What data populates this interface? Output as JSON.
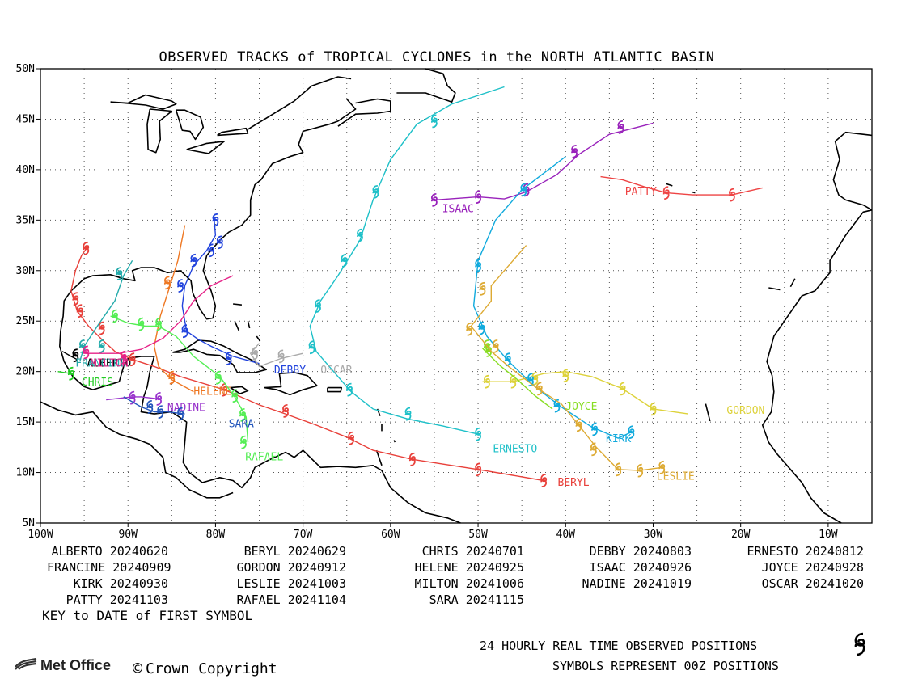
{
  "title": "OBSERVED TRACKS of TROPICAL CYCLONES in the NORTH ATLANTIC BASIN",
  "map": {
    "lon_range": [
      -100,
      -5
    ],
    "lat_range": [
      5,
      50
    ],
    "lat_ticks": [
      "5N",
      "10N",
      "15N",
      "20N",
      "25N",
      "30N",
      "35N",
      "40N",
      "45N",
      "50N"
    ],
    "lat_tick_values": [
      5,
      10,
      15,
      20,
      25,
      30,
      35,
      40,
      45,
      50
    ],
    "lon_ticks": [
      "100W",
      "90W",
      "80W",
      "70W",
      "60W",
      "50W",
      "40W",
      "30W",
      "20W",
      "10W"
    ],
    "lon_tick_values": [
      -100,
      -90,
      -80,
      -70,
      -60,
      -50,
      -40,
      -30,
      -20,
      -10
    ],
    "grid": "dotted"
  },
  "storms": [
    {
      "name": "ALBERTO",
      "color": "#000000",
      "label": [
        -94.7,
        20.5
      ],
      "track": [
        [
          -97.5,
          22.0
        ],
        [
          -96.5,
          21.5
        ],
        [
          -95.8,
          21.2
        ]
      ],
      "symbols": [
        [
          -96,
          21.6
        ]
      ]
    },
    {
      "name": "BERYL",
      "color": "#e8403a",
      "label": [
        -40.9,
        8.7
      ],
      "track": [
        [
          -42.5,
          9.2
        ],
        [
          -50.0,
          10.3
        ],
        [
          -57.5,
          11.3
        ],
        [
          -62,
          12.2
        ],
        [
          -65,
          13.5
        ],
        [
          -68.5,
          14.7
        ],
        [
          -72,
          15.8
        ],
        [
          -75,
          16.7
        ],
        [
          -79,
          18.2
        ],
        [
          -84,
          19.5
        ],
        [
          -87,
          20.5
        ],
        [
          -89.5,
          21.2
        ],
        [
          -91.5,
          22.0
        ],
        [
          -93,
          23.2
        ],
        [
          -94.5,
          24.5
        ],
        [
          -95.8,
          26.0
        ],
        [
          -96.5,
          28.0
        ],
        [
          -96.0,
          30.0
        ],
        [
          -95.3,
          31.5
        ],
        [
          -94.5,
          32.5
        ]
      ],
      "symbols": [
        [
          -42.5,
          9.2
        ],
        [
          -50.0,
          10.3
        ],
        [
          -57.5,
          11.3
        ],
        [
          -64.5,
          13.4
        ],
        [
          -72,
          16.1
        ],
        [
          -79,
          18.2
        ],
        [
          -89.5,
          21.2
        ],
        [
          -93,
          24.3
        ],
        [
          -95.5,
          26.0
        ],
        [
          -96.0,
          27.2
        ],
        [
          -94.8,
          32.2
        ]
      ]
    },
    {
      "name": "CHRIS",
      "color": "#22cc22",
      "label": [
        -95.3,
        18.6
      ],
      "track": [
        [
          -98.0,
          20.0
        ],
        [
          -96.5,
          19.8
        ]
      ],
      "symbols": [
        [
          -96.5,
          19.8
        ]
      ]
    },
    {
      "name": "DEBBY",
      "color": "#2244dd",
      "label": [
        -73.3,
        19.8
      ],
      "track": [
        [
          -75.0,
          20.8
        ],
        [
          -78.0,
          21.5
        ],
        [
          -80.5,
          22.5
        ],
        [
          -82.0,
          23.2
        ],
        [
          -83.3,
          24.0
        ],
        [
          -83.8,
          26.5
        ],
        [
          -83.5,
          28.5
        ],
        [
          -82.5,
          30.5
        ],
        [
          -81.0,
          32.0
        ],
        [
          -80.0,
          33.5
        ],
        [
          -80.2,
          35.5
        ]
      ],
      "symbols": [
        [
          -78.5,
          21.3
        ],
        [
          -83.5,
          24.0
        ],
        [
          -84.0,
          28.5
        ],
        [
          -82.5,
          31.0
        ],
        [
          -80.5,
          32.0
        ],
        [
          -79.5,
          32.8
        ],
        [
          -80.0,
          35.0
        ]
      ]
    },
    {
      "name": "ERNESTO",
      "color": "#1ec0c8",
      "label": [
        -48.3,
        12.0
      ],
      "track": [
        [
          -50.0,
          13.8
        ],
        [
          -54,
          14.6
        ],
        [
          -58,
          15.3
        ],
        [
          -62,
          16.3
        ],
        [
          -64.5,
          18.0
        ],
        [
          -66.5,
          20.0
        ],
        [
          -68.5,
          22.0
        ],
        [
          -69.2,
          24.5
        ],
        [
          -68.0,
          27.0
        ],
        [
          -66.0,
          29.5
        ],
        [
          -63.5,
          33.0
        ],
        [
          -62.0,
          37.0
        ],
        [
          -60.0,
          41.0
        ],
        [
          -57.0,
          44.5
        ],
        [
          -53.0,
          46.5
        ],
        [
          -47.0,
          48.2
        ]
      ],
      "symbols": [
        [
          -50.0,
          13.8
        ],
        [
          -58.0,
          15.8
        ],
        [
          -64.7,
          18.2
        ],
        [
          -69.0,
          22.4
        ],
        [
          -68.3,
          26.5
        ],
        [
          -65.3,
          31.0
        ],
        [
          -63.5,
          33.5
        ],
        [
          -61.7,
          37.8
        ],
        [
          -55.0,
          44.8
        ]
      ]
    },
    {
      "name": "FRANCINE",
      "color": "#22aaaa",
      "label": [
        -96.0,
        20.5
      ],
      "track": [
        [
          -95.5,
          21.0
        ],
        [
          -95.0,
          22.5
        ],
        [
          -93.5,
          24.5
        ],
        [
          -91.5,
          27.0
        ],
        [
          -90.5,
          29.5
        ],
        [
          -89.5,
          31.0
        ]
      ],
      "symbols": [
        [
          -95.2,
          22.5
        ],
        [
          -93,
          22.5
        ],
        [
          -91,
          29.7
        ]
      ]
    },
    {
      "name": "GORDON",
      "color": "#ddd23a",
      "label": [
        -21.6,
        15.8
      ],
      "track": [
        [
          -26.0,
          15.8
        ],
        [
          -30.0,
          16.3
        ],
        [
          -33.5,
          18.3
        ],
        [
          -37.0,
          19.5
        ],
        [
          -40.0,
          20.0
        ],
        [
          -42.5,
          19.8
        ],
        [
          -46.0,
          19.0
        ],
        [
          -49.5,
          19.0
        ]
      ],
      "symbols": [
        [
          -30.0,
          16.3
        ],
        [
          -33.5,
          18.3
        ],
        [
          -40.0,
          19.6
        ],
        [
          -43.5,
          19.3
        ],
        [
          -46.0,
          19.0
        ],
        [
          -49.0,
          19.0
        ]
      ]
    },
    {
      "name": "HELENE",
      "color": "#ee7722",
      "label": [
        -82.5,
        17.7
      ],
      "track": [
        [
          -82.5,
          18.0
        ],
        [
          -85,
          19.2
        ],
        [
          -86.5,
          20.5
        ],
        [
          -87.0,
          22.5
        ],
        [
          -86.3,
          25.5
        ],
        [
          -85.2,
          28.5
        ],
        [
          -84.3,
          31.0
        ],
        [
          -83.5,
          34.5
        ]
      ],
      "symbols": [
        [
          -85.0,
          19.4
        ],
        [
          -85.5,
          28.8
        ]
      ]
    },
    {
      "name": "ISAAC",
      "color": "#9922bb",
      "label": [
        -54.1,
        35.8
      ],
      "track": [
        [
          -55.0,
          37.0
        ],
        [
          -50.0,
          37.3
        ],
        [
          -47.0,
          37.1
        ],
        [
          -44.5,
          37.8
        ],
        [
          -41.0,
          39.5
        ],
        [
          -38.5,
          41.5
        ],
        [
          -35.0,
          43.5
        ],
        [
          -30.0,
          44.6
        ]
      ],
      "symbols": [
        [
          -55.0,
          37.0
        ],
        [
          -50.0,
          37.3
        ],
        [
          -44.5,
          38.0
        ],
        [
          -39.0,
          41.8
        ],
        [
          -33.7,
          44.2
        ]
      ]
    },
    {
      "name": "JOYCE",
      "color": "#88dd22",
      "label": [
        -40.0,
        16.2
      ],
      "track": [
        [
          -41.5,
          16.3
        ],
        [
          -43.5,
          17.6
        ],
        [
          -45.5,
          19.2
        ],
        [
          -47.5,
          20.6
        ],
        [
          -49.5,
          22.3
        ]
      ],
      "symbols": [
        [
          -49.0,
          22.5
        ],
        [
          -48.8,
          22.1
        ]
      ]
    },
    {
      "name": "KIRK",
      "color": "#11aadd",
      "label": [
        -35.4,
        13.0
      ],
      "track": [
        [
          -32.5,
          14.0
        ],
        [
          -34.0,
          13.4
        ],
        [
          -37.0,
          14.5
        ],
        [
          -40.5,
          16.5
        ],
        [
          -43.5,
          18.5
        ],
        [
          -46.5,
          21.0
        ],
        [
          -49.0,
          23.5
        ],
        [
          -50.5,
          26.5
        ],
        [
          -50.0,
          31.0
        ],
        [
          -48.0,
          35.0
        ],
        [
          -45.0,
          38.0
        ],
        [
          -40.0,
          41.3
        ]
      ],
      "symbols": [
        [
          -32.5,
          14.0
        ],
        [
          -36.7,
          14.3
        ],
        [
          -41.0,
          16.6
        ],
        [
          -44.0,
          19.2
        ],
        [
          -46.6,
          21.2
        ],
        [
          -49.6,
          24.3
        ],
        [
          -50.0,
          30.5
        ],
        [
          -44.8,
          38.0
        ]
      ]
    },
    {
      "name": "LESLIE",
      "color": "#ddaa33",
      "label": [
        -29.6,
        9.3
      ],
      "track": [
        [
          -29.0,
          10.5
        ],
        [
          -31.5,
          10.2
        ],
        [
          -34.0,
          10.3
        ],
        [
          -36.5,
          12.5
        ],
        [
          -38.5,
          14.7
        ],
        [
          -40.5,
          16.8
        ],
        [
          -43.5,
          18.5
        ],
        [
          -46.5,
          20.5
        ],
        [
          -48.5,
          22.0
        ],
        [
          -50.8,
          24.5
        ],
        [
          -48.5,
          27.0
        ],
        [
          -48.5,
          28.5
        ],
        [
          -46.0,
          31.0
        ],
        [
          -44.5,
          32.5
        ]
      ],
      "symbols": [
        [
          -29.0,
          10.5
        ],
        [
          -31.5,
          10.2
        ],
        [
          -34.0,
          10.3
        ],
        [
          -36.8,
          12.3
        ],
        [
          -38.5,
          14.7
        ],
        [
          -43.0,
          18.3
        ],
        [
          -48.0,
          22.5
        ],
        [
          -51.0,
          24.2
        ],
        [
          -49.5,
          28.2
        ]
      ]
    },
    {
      "name": "MILTON",
      "color": "#e62288",
      "label": [
        -94.3,
        20.5
      ],
      "track": [
        [
          -95.0,
          21.8
        ],
        [
          -91.0,
          21.8
        ],
        [
          -88.5,
          22.2
        ],
        [
          -86.0,
          23.3
        ],
        [
          -84.0,
          25.0
        ],
        [
          -82.5,
          27.0
        ],
        [
          -80.5,
          28.5
        ],
        [
          -78.0,
          29.5
        ]
      ],
      "symbols": [
        [
          -94.8,
          21.9
        ],
        [
          -90.5,
          21.4
        ]
      ]
    },
    {
      "name": "NADINE",
      "color": "#9933cc",
      "label": [
        -85.5,
        16.1
      ],
      "track": [
        [
          -92.5,
          17.2
        ],
        [
          -89.5,
          17.5
        ],
        [
          -88.5,
          17.5
        ],
        [
          -86.5,
          17.3
        ]
      ],
      "symbols": [
        [
          -89.5,
          17.4
        ],
        [
          -86.5,
          17.3
        ]
      ]
    },
    {
      "name": "OSCAR",
      "color": "#aaaaaa",
      "label": [
        -68.0,
        19.8
      ],
      "track": [
        [
          -70.0,
          21.8
        ],
        [
          -72.5,
          21.3
        ],
        [
          -75.0,
          20.5
        ],
        [
          -76.0,
          21.8
        ],
        [
          -75.0,
          22.8
        ]
      ],
      "symbols": [
        [
          -72.5,
          21.5
        ],
        [
          -75.5,
          21.8
        ]
      ]
    },
    {
      "name": "PATTY",
      "color": "#ee4444",
      "label": [
        -33.2,
        37.5
      ],
      "track": [
        [
          -17.5,
          38.2
        ],
        [
          -21.0,
          37.5
        ],
        [
          -25.5,
          37.5
        ],
        [
          -28.5,
          37.7
        ],
        [
          -31.0,
          38.3
        ],
        [
          -33.5,
          39.0
        ],
        [
          -36.0,
          39.3
        ]
      ],
      "symbols": [
        [
          -21.0,
          37.5
        ],
        [
          -28.5,
          37.7
        ]
      ]
    },
    {
      "name": "RAFAEL",
      "color": "#55ee55",
      "label": [
        -76.6,
        11.2
      ],
      "track": [
        [
          -76.3,
          13.0
        ],
        [
          -76.5,
          15.5
        ],
        [
          -77.8,
          17.5
        ],
        [
          -79.5,
          19.5
        ],
        [
          -82.5,
          21.5
        ],
        [
          -84.5,
          23.5
        ],
        [
          -86.5,
          24.5
        ],
        [
          -88.0,
          24.5
        ],
        [
          -90.0,
          24.8
        ],
        [
          -92.0,
          25.5
        ]
      ],
      "symbols": [
        [
          -76.8,
          13.0
        ],
        [
          -76.9,
          15.7
        ],
        [
          -77.8,
          17.6
        ],
        [
          -79.7,
          19.4
        ],
        [
          -86.5,
          24.7
        ],
        [
          -88.5,
          24.7
        ],
        [
          -91.5,
          25.5
        ]
      ]
    },
    {
      "name": "SARA",
      "color": "#2255bb",
      "label": [
        -78.5,
        14.5
      ],
      "track": [
        [
          -83.5,
          15.8
        ],
        [
          -85.5,
          16.0
        ],
        [
          -87.0,
          16.0
        ],
        [
          -88.5,
          16.5
        ],
        [
          -90.5,
          17.5
        ]
      ],
      "symbols": [
        [
          -84.0,
          15.8
        ],
        [
          -86.3,
          16.0
        ],
        [
          -87.5,
          16.5
        ]
      ]
    }
  ],
  "legend": {
    "rows": [
      [
        {
          "name": "ALBERTO",
          "date": "20240620"
        },
        {
          "name": "BERYL",
          "date": "20240629"
        },
        {
          "name": "CHRIS",
          "date": "20240701"
        },
        {
          "name": "DEBBY",
          "date": "20240803"
        },
        {
          "name": "ERNESTO",
          "date": "20240812"
        }
      ],
      [
        {
          "name": "FRANCINE",
          "date": "20240909"
        },
        {
          "name": "GORDON",
          "date": "20240912"
        },
        {
          "name": "HELENE",
          "date": "20240925"
        },
        {
          "name": "ISAAC",
          "date": "20240926"
        },
        {
          "name": "JOYCE",
          "date": "20240928"
        }
      ],
      [
        {
          "name": "KIRK",
          "date": "20240930"
        },
        {
          "name": "LESLIE",
          "date": "20241003"
        },
        {
          "name": "MILTON",
          "date": "20241006"
        },
        {
          "name": "NADINE",
          "date": "20241019"
        },
        {
          "name": "OSCAR",
          "date": "20241020"
        }
      ],
      [
        {
          "name": "PATTY",
          "date": "20241103"
        },
        {
          "name": "RAFAEL",
          "date": "20241104"
        },
        {
          "name": "SARA",
          "date": "20241115"
        }
      ]
    ],
    "key_text": "KEY to DATE of FIRST SYMBOL"
  },
  "footer": {
    "line1": "24 HOURLY REAL TIME OBSERVED POSITIONS",
    "line2": "SYMBOLS REPRESENT 00Z POSITIONS",
    "logo_text": "Met Office",
    "copyright_text": "Crown Copyright"
  },
  "colors": {
    "coast": "#000000",
    "grid": "#555555",
    "frame": "#000000"
  }
}
